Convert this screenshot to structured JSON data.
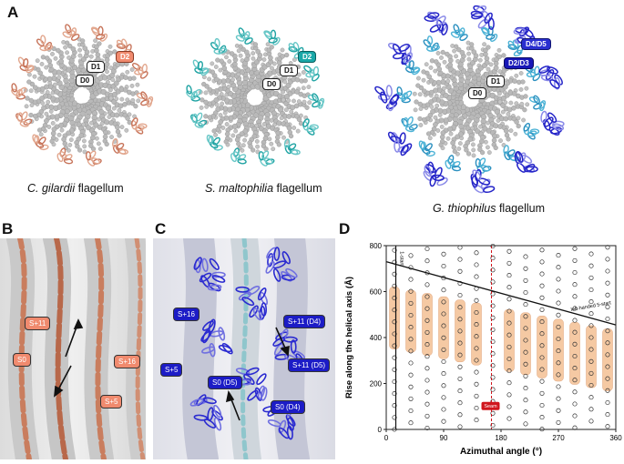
{
  "panels": {
    "a": "A",
    "b": "B",
    "c": "C",
    "d": "D"
  },
  "panel_a": {
    "cg": {
      "d2": "D2",
      "d1": "D1",
      "d0": "D0",
      "species": "C. gilardii",
      "suffix": " flagellum"
    },
    "sm": {
      "d2": "D2",
      "d1": "D1",
      "d0": "D0",
      "species": "S. maltophilia",
      "suffix": " flagellum"
    },
    "gt": {
      "d45": "D4/D5",
      "d23": "D2/D3",
      "d1": "D1",
      "d0": "D0",
      "species": "G. thiophilus",
      "suffix": " flagellum"
    }
  },
  "panel_b": {
    "labels": [
      "S+11",
      "S0",
      "S+16",
      "S+5"
    ]
  },
  "panel_c": {
    "labels": [
      "S+16",
      "S+5",
      "S+11 (D4)",
      "S+11 (D5)",
      "S0 (D5)",
      "S0 (D4)"
    ]
  },
  "chart_data": {
    "type": "scatter",
    "xlabel": "Azimuthal angle (°)",
    "ylabel": "Rise along the helical axis (Å)",
    "xlim": [
      0,
      360
    ],
    "ylim": [
      0,
      800
    ],
    "x_ticks": [
      "0",
      "90",
      "180",
      "270",
      "360"
    ],
    "y_ticks": [
      "0",
      "200",
      "400",
      "600",
      "800"
    ],
    "annotations": {
      "one_start": "1-start",
      "five_start": "left-handed 5-start",
      "seam": "Seam"
    },
    "seam_x": 165,
    "one_start_x": 15,
    "five_start_line": {
      "x": [
        0,
        360
      ],
      "y": [
        730,
        455
      ]
    },
    "colors": {
      "highlight": "#f5c9a3",
      "seam": "#d0161d",
      "point": "#333333"
    }
  }
}
